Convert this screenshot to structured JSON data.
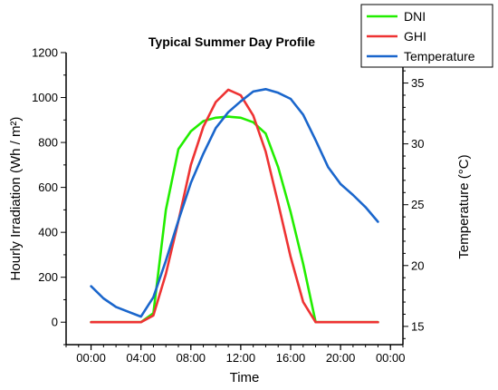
{
  "chart_data": {
    "type": "line",
    "title": "Typical Summer Day Profile",
    "xlabel": "Time",
    "ylabel": "Hourly Irradiation (Wh / m²)",
    "y2label": "Temperature (°C)",
    "x_ticks": [
      "00:00",
      "04:00",
      "08:00",
      "12:00",
      "16:00",
      "20:00",
      "00:00"
    ],
    "xlim": [
      -2,
      25
    ],
    "ylim": [
      -100,
      1200
    ],
    "y_ticks": [
      0,
      200,
      400,
      600,
      800,
      1000,
      1200
    ],
    "y2lim": [
      13.5,
      37.5
    ],
    "y2_ticks": [
      15,
      20,
      25,
      30,
      35
    ],
    "grid": false,
    "legend_position": "top-right",
    "x_hours": [
      0,
      1,
      2,
      3,
      4,
      5,
      6,
      7,
      8,
      9,
      10,
      11,
      12,
      13,
      14,
      15,
      16,
      17,
      18,
      19,
      20,
      21,
      22,
      23
    ],
    "series": [
      {
        "name": "DNI",
        "axis": "left",
        "color": "#22ee00",
        "values": [
          0,
          0,
          0,
          0,
          0,
          40,
          500,
          770,
          850,
          895,
          910,
          915,
          910,
          890,
          840,
          690,
          490,
          260,
          0,
          0,
          0,
          0,
          0,
          0
        ]
      },
      {
        "name": "GHI",
        "axis": "left",
        "color": "#ee3333",
        "values": [
          0,
          0,
          0,
          0,
          0,
          30,
          215,
          450,
          700,
          870,
          980,
          1035,
          1010,
          920,
          760,
          530,
          290,
          90,
          0,
          0,
          0,
          0,
          0,
          0
        ]
      },
      {
        "name": "Temperature",
        "axis": "right",
        "color": "#1a66cc",
        "values": [
          18.3,
          17.3,
          16.6,
          16.2,
          15.8,
          17.4,
          20.4,
          23.7,
          26.8,
          29.2,
          31.3,
          32.6,
          33.5,
          34.3,
          34.5,
          34.2,
          33.7,
          32.4,
          30.3,
          28.1,
          26.7,
          25.8,
          24.8,
          23.6
        ]
      }
    ]
  }
}
